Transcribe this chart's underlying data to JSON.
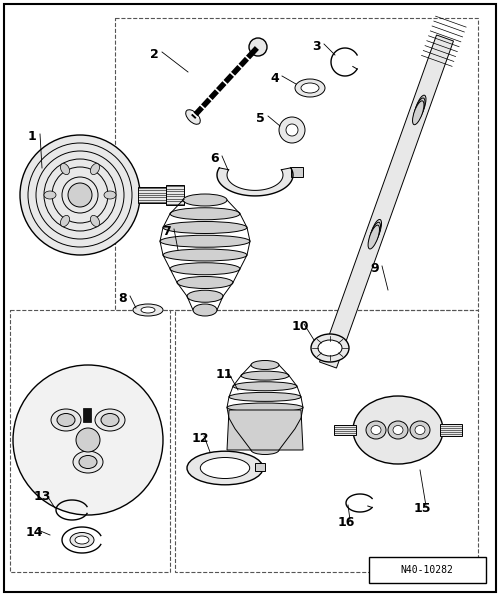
{
  "background_color": "#ffffff",
  "figure_width": 5.0,
  "figure_height": 5.96,
  "dpi": 100,
  "label_color": "#000000",
  "label_fontsize": 9,
  "line_color": "#000000",
  "ref_code": "N40-10282"
}
